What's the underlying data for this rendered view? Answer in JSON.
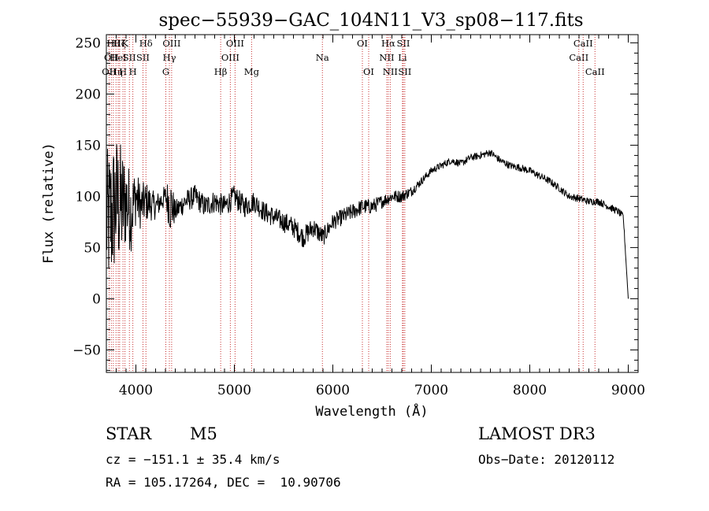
{
  "chart_data": {
    "type": "line",
    "title": "spec−55939−GAC_104N11_V3_sp08−117.fits",
    "xlabel": "Wavelength (Å)",
    "ylabel": "Flux (relative)",
    "xlim": [
      3700,
      9100
    ],
    "ylim": [
      -72,
      258
    ],
    "x_ticks": [
      4000,
      5000,
      6000,
      7000,
      8000,
      9000
    ],
    "x_tick_labels": [
      "4000",
      "5000",
      "6000",
      "7000",
      "8000",
      "9000"
    ],
    "y_ticks": [
      -50,
      0,
      50,
      100,
      150,
      200,
      250
    ],
    "y_tick_labels": [
      "−50",
      "0",
      "50",
      "100",
      "150",
      "200",
      "250"
    ],
    "grid": false,
    "series": [
      {
        "name": "flux",
        "x": [
          3700,
          3750,
          3800,
          3850,
          3900,
          3950,
          4000,
          4050,
          4100,
          4200,
          4300,
          4350,
          4400,
          4500,
          4600,
          4700,
          4800,
          4900,
          5000,
          5100,
          5200,
          5300,
          5400,
          5500,
          5600,
          5700,
          5800,
          5900,
          6000,
          6100,
          6200,
          6300,
          6400,
          6500,
          6600,
          6700,
          6800,
          6900,
          7000,
          7100,
          7200,
          7300,
          7400,
          7500,
          7600,
          7700,
          7800,
          7900,
          8000,
          8100,
          8200,
          8300,
          8400,
          8500,
          8600,
          8700,
          8800,
          8900,
          8950,
          9000
        ],
        "values": [
          75,
          80,
          95,
          90,
          95,
          85,
          100,
          90,
          95,
          90,
          100,
          92,
          85,
          95,
          100,
          90,
          95,
          90,
          100,
          90,
          95,
          85,
          80,
          75,
          70,
          60,
          70,
          60,
          75,
          80,
          85,
          90,
          90,
          95,
          100,
          100,
          105,
          115,
          125,
          130,
          135,
          132,
          138,
          140,
          143,
          135,
          130,
          128,
          125,
          120,
          115,
          108,
          100,
          98,
          95,
          95,
          90,
          85,
          80,
          0
        ],
        "noise": [
          140,
          145,
          135,
          125,
          90,
          80,
          55,
          45,
          40,
          25,
          22,
          60,
          22,
          22,
          22,
          22,
          22,
          22,
          22,
          22,
          20,
          20,
          20,
          20,
          20,
          20,
          20,
          18,
          16,
          16,
          16,
          15,
          15,
          13,
          12,
          12,
          10,
          8,
          7,
          7,
          7,
          7,
          7,
          7,
          7,
          7,
          7,
          7,
          7,
          7,
          7,
          7,
          7,
          7,
          7,
          7,
          7,
          7,
          7,
          0
        ]
      }
    ],
    "spectral_lines": [
      {
        "wavelength": 3728,
        "label": "OII",
        "row": 3
      },
      {
        "wavelength": 3750,
        "label": "OII",
        "row": 2
      },
      {
        "wavelength": 3771,
        "label": "Hθ",
        "row": 1
      },
      {
        "wavelength": 3798,
        "label": "Hη",
        "row": 3
      },
      {
        "wavelength": 3820,
        "label": "HeI",
        "row": 2
      },
      {
        "wavelength": 3835,
        "label": "Hζ",
        "row": 1
      },
      {
        "wavelength": 3869,
        "label": "H",
        "row": 3
      },
      {
        "wavelength": 3889,
        "label": "K",
        "row": 1
      },
      {
        "wavelength": 3934,
        "label": "SII",
        "row": 2
      },
      {
        "wavelength": 3969,
        "label": "H",
        "row": 3
      },
      {
        "wavelength": 4072,
        "label": "SII",
        "row": 2
      },
      {
        "wavelength": 4102,
        "label": "Hδ",
        "row": 1
      },
      {
        "wavelength": 4304,
        "label": "G",
        "row": 3
      },
      {
        "wavelength": 4340,
        "label": "Hγ",
        "row": 2
      },
      {
        "wavelength": 4363,
        "label": "OIII",
        "row": 1
      },
      {
        "wavelength": 4861,
        "label": "Hβ",
        "row": 3
      },
      {
        "wavelength": 4959,
        "label": "OIII",
        "row": 2
      },
      {
        "wavelength": 5007,
        "label": "OIII",
        "row": 1
      },
      {
        "wavelength": 5175,
        "label": "Mg",
        "row": 3
      },
      {
        "wavelength": 5894,
        "label": "Na",
        "row": 2
      },
      {
        "wavelength": 6300,
        "label": "OI",
        "row": 1
      },
      {
        "wavelength": 6364,
        "label": "OI",
        "row": 3
      },
      {
        "wavelength": 6548,
        "label": "NII",
        "row": 2
      },
      {
        "wavelength": 6563,
        "label": "Hα",
        "row": 1
      },
      {
        "wavelength": 6583,
        "label": "NII",
        "row": 3
      },
      {
        "wavelength": 6707,
        "label": "Li",
        "row": 2
      },
      {
        "wavelength": 6716,
        "label": "SII",
        "row": 1
      },
      {
        "wavelength": 6731,
        "label": "SII",
        "row": 3
      },
      {
        "wavelength": 8498,
        "label": "CaII",
        "row": 2
      },
      {
        "wavelength": 8542,
        "label": "CaII",
        "row": 1
      },
      {
        "wavelength": 8662,
        "label": "CaII",
        "row": 3
      }
    ]
  },
  "info": {
    "object_class": "STAR",
    "subclass": "M5",
    "survey": "LAMOST DR3",
    "redshift": "cz = −151.1 ± 35.4 km/s",
    "obs_date": "Obs−Date: 20120112",
    "coords": "RA = 105.17264, DEC =  10.90706"
  }
}
